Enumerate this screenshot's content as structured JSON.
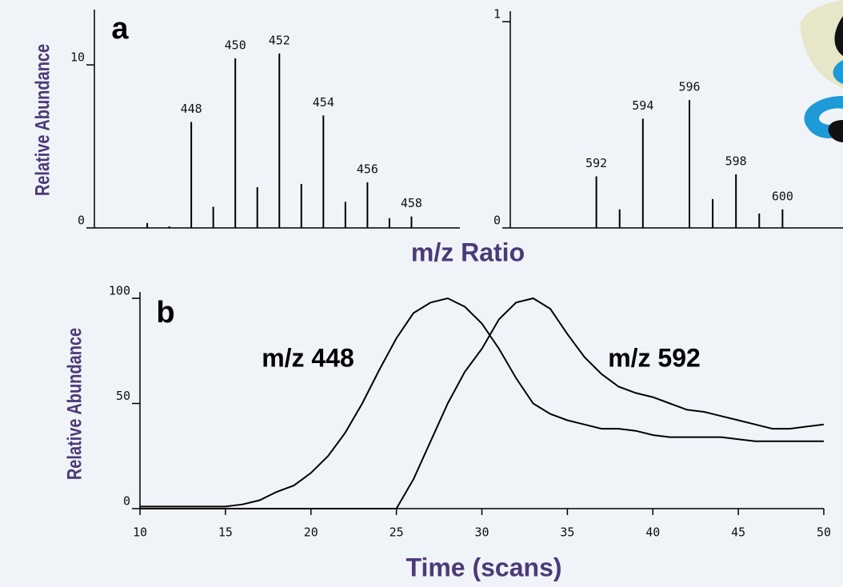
{
  "chart_data": [
    {
      "type": "stem",
      "panel_label": "a",
      "ylabel": "Relative Abundance",
      "xlabel": "m/z Ratio",
      "x": [
        446,
        447,
        448,
        449,
        450,
        451,
        452,
        453,
        454,
        455,
        456,
        457,
        458
      ],
      "values": [
        0.3,
        0.1,
        6.5,
        1.3,
        10.4,
        2.5,
        10.7,
        2.7,
        6.9,
        1.6,
        2.8,
        0.6,
        0.7
      ],
      "peak_labels": [
        null,
        null,
        448,
        null,
        450,
        null,
        452,
        null,
        454,
        null,
        456,
        null,
        458
      ],
      "color": "#000000",
      "xlim": [
        443.6,
        460.2
      ],
      "ylim": [
        0,
        13
      ],
      "yticks": [
        0,
        10
      ],
      "grid": false
    },
    {
      "type": "stem",
      "x": [
        592,
        593,
        594,
        596,
        597,
        598,
        599,
        600
      ],
      "values": [
        0.25,
        0.09,
        0.53,
        0.62,
        0.14,
        0.26,
        0.07,
        0.09
      ],
      "peak_labels": [
        592,
        null,
        594,
        596,
        null,
        598,
        null,
        600
      ],
      "color": "#000000",
      "xlim": [
        588.3,
        602.6
      ],
      "ylim": [
        0,
        1.02
      ],
      "yticks": [
        0,
        1
      ],
      "grid": false
    },
    {
      "type": "line",
      "panel_label": "b",
      "ylabel": "Relative Abundance",
      "xlabel": "Time (scans)",
      "x": [
        10,
        11,
        12,
        13,
        14,
        15,
        16,
        17,
        18,
        19,
        20,
        21,
        22,
        23,
        24,
        25,
        26,
        27,
        28,
        29,
        30,
        31,
        32,
        33,
        34,
        35,
        36,
        37,
        38,
        39,
        40,
        41,
        42,
        43,
        44,
        45,
        46,
        47,
        48,
        49,
        50
      ],
      "series": [
        {
          "name": "m/z 448",
          "color": "#000000",
          "values": [
            1,
            1,
            1,
            1,
            1,
            1,
            2,
            4,
            8,
            11,
            17,
            25,
            36,
            50,
            66,
            81,
            93,
            98,
            100,
            96,
            88,
            76,
            62,
            50,
            45,
            42,
            40,
            38,
            38,
            37,
            35,
            34,
            34,
            34,
            34,
            33,
            32,
            32,
            32,
            32,
            32
          ]
        },
        {
          "name": "m/z 592",
          "color": "#000000",
          "values": [
            0,
            0,
            0,
            0,
            0,
            0,
            0,
            0,
            0,
            0,
            0,
            0,
            0,
            0,
            0,
            0,
            14,
            32,
            50,
            65,
            76,
            90,
            98,
            100,
            95,
            83,
            72,
            64,
            58,
            55,
            53,
            50,
            47,
            46,
            44,
            42,
            40,
            38,
            38,
            39,
            40
          ]
        }
      ],
      "xlim": [
        10,
        50
      ],
      "xticks": [
        10,
        15,
        20,
        25,
        30,
        35,
        40,
        45,
        50
      ],
      "ylim": [
        0,
        100
      ],
      "yticks": [
        0,
        50,
        100
      ],
      "grid": false
    }
  ]
}
